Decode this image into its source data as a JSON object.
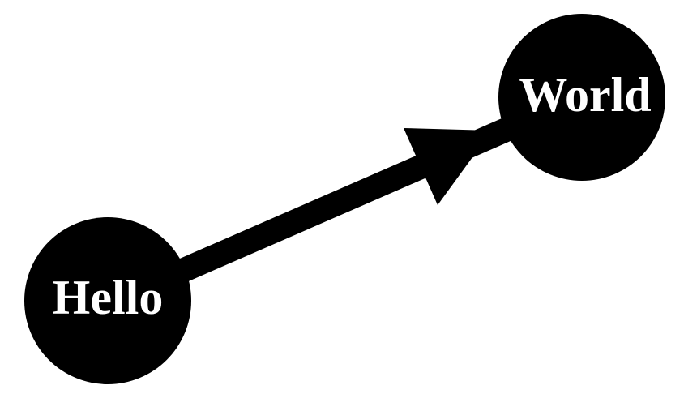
{
  "diagram": {
    "colors": {
      "node_fill": "#000000",
      "label_color": "#ffffff",
      "edge_color": "#000000",
      "background": "#ffffff"
    },
    "nodes": [
      {
        "id": "hello",
        "label": "Hello"
      },
      {
        "id": "world",
        "label": "World"
      }
    ],
    "edges": [
      {
        "from": "hello",
        "to": "world",
        "directed": true
      }
    ]
  }
}
